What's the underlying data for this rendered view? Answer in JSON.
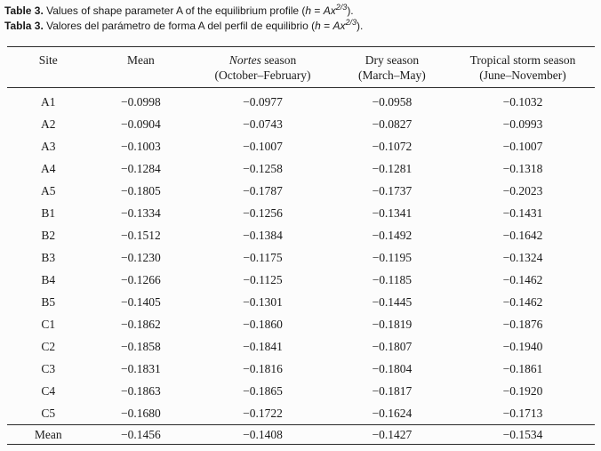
{
  "colors": {
    "background": "#fcfcfc",
    "text": "#1b1b1b",
    "rule": "#2b2b2b"
  },
  "captions": [
    {
      "bold": "Table 3.",
      "body": " Values of shape parameter A of the equilibrium profile (",
      "var1": "h",
      "equals": " = ",
      "var2": "Ax",
      "sup": "2/3",
      "tail": ")."
    },
    {
      "bold": "Tabla 3.",
      "body": " Valores del parámetro de forma A del perfil de equilibrio (",
      "var1": "h",
      "equals": " = ",
      "var2": "Ax",
      "sup": "2/3",
      "tail": ")."
    }
  ],
  "table": {
    "columns": [
      {
        "label": "Site",
        "sub": ""
      },
      {
        "label": "Mean",
        "sub": ""
      },
      {
        "label_italic": "Nortes",
        "label": " season",
        "sub": "(October–February)"
      },
      {
        "label": "Dry season",
        "sub": "(March–May)"
      },
      {
        "label": "Tropical storm season",
        "sub": "(June–November)"
      }
    ],
    "rows": [
      {
        "site": "A1",
        "values": [
          "−0.0998",
          "−0.0977",
          "−0.0958",
          "−0.1032"
        ]
      },
      {
        "site": "A2",
        "values": [
          "−0.0904",
          "−0.0743",
          "−0.0827",
          "−0.0993"
        ]
      },
      {
        "site": "A3",
        "values": [
          "−0.1003",
          "−0.1007",
          "−0.1072",
          "−0.1007"
        ]
      },
      {
        "site": "A4",
        "values": [
          "−0.1284",
          "−0.1258",
          "−0.1281",
          "−0.1318"
        ]
      },
      {
        "site": "A5",
        "values": [
          "−0.1805",
          "−0.1787",
          "−0.1737",
          "−0.2023"
        ]
      },
      {
        "site": "B1",
        "values": [
          "−0.1334",
          "−0.1256",
          "−0.1341",
          "−0.1431"
        ]
      },
      {
        "site": "B2",
        "values": [
          "−0.1512",
          "−0.1384",
          "−0.1492",
          "−0.1642"
        ]
      },
      {
        "site": "B3",
        "values": [
          "−0.1230",
          "−0.1175",
          "−0.1195",
          "−0.1324"
        ]
      },
      {
        "site": "B4",
        "values": [
          "−0.1266",
          "−0.1125",
          "−0.1185",
          "−0.1462"
        ]
      },
      {
        "site": "B5",
        "values": [
          "−0.1405",
          "−0.1301",
          "−0.1445",
          "−0.1462"
        ]
      },
      {
        "site": "C1",
        "values": [
          "−0.1862",
          "−0.1860",
          "−0.1819",
          "−0.1876"
        ]
      },
      {
        "site": "C2",
        "values": [
          "−0.1858",
          "−0.1841",
          "−0.1807",
          "−0.1940"
        ]
      },
      {
        "site": "C3",
        "values": [
          "−0.1831",
          "−0.1816",
          "−0.1804",
          "−0.1861"
        ]
      },
      {
        "site": "C4",
        "values": [
          "−0.1863",
          "−0.1865",
          "−0.1817",
          "−0.1920"
        ]
      },
      {
        "site": "C5",
        "values": [
          "−0.1680",
          "−0.1722",
          "−0.1624",
          "−0.1713"
        ]
      }
    ],
    "footer": {
      "site": "Mean",
      "values": [
        "−0.1456",
        "−0.1408",
        "−0.1427",
        "−0.1534"
      ]
    }
  }
}
